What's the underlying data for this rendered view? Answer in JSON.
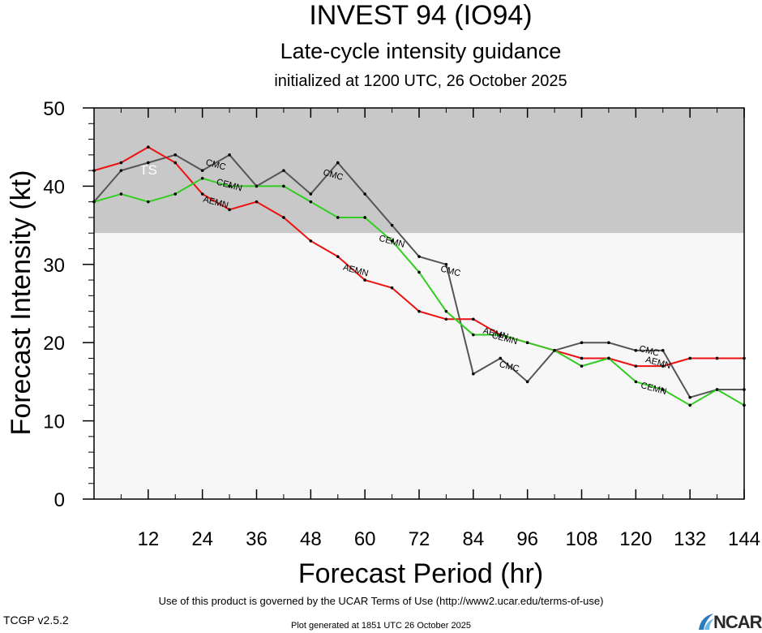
{
  "chart_data": {
    "type": "line",
    "title": "INVEST 94 (IO94)",
    "subtitle": "Late-cycle intensity guidance",
    "init_text": "initialized at 1200 UTC, 26 October 2025",
    "xlabel": "Forecast Period (hr)",
    "ylabel": "Forecast Intensity (kt)",
    "xlim": [
      0,
      144
    ],
    "ylim": [
      0,
      50
    ],
    "xticks": [
      12,
      24,
      36,
      48,
      60,
      72,
      84,
      96,
      108,
      120,
      132,
      144
    ],
    "yticks": [
      0,
      10,
      20,
      30,
      40,
      50
    ],
    "bands": [
      {
        "label": "TS",
        "from": 34,
        "to": 50,
        "color": "#c8c8c8"
      },
      {
        "label": "",
        "from": 0,
        "to": 34,
        "color": "#f7f7f7"
      }
    ],
    "series": [
      {
        "name": "CMC",
        "color": "#555555",
        "x": [
          0,
          6,
          12,
          18,
          24,
          30,
          36,
          42,
          48,
          54,
          60,
          66,
          72,
          78,
          84,
          90,
          96,
          102,
          108,
          114,
          120,
          126,
          132,
          138,
          144
        ],
        "y": [
          38,
          42,
          43,
          44,
          42,
          44,
          40,
          42,
          39,
          43,
          39,
          35,
          31,
          30,
          16,
          18,
          15,
          19,
          20,
          20,
          19,
          19,
          13,
          14,
          14
        ],
        "labels": [
          {
            "x": 27,
            "y": 42.8
          },
          {
            "x": 53,
            "y": 41.5
          },
          {
            "x": 79,
            "y": 29.2
          },
          {
            "x": 92,
            "y": 17.0
          },
          {
            "x": 123,
            "y": 19.0
          }
        ]
      },
      {
        "name": "AEMN",
        "color": "#ee1111",
        "x": [
          0,
          6,
          12,
          18,
          24,
          30,
          36,
          42,
          48,
          54,
          60,
          66,
          72,
          78,
          84,
          90,
          96,
          102,
          108,
          114,
          120,
          126,
          132,
          138,
          144
        ],
        "y": [
          42,
          43,
          45,
          43,
          39,
          37,
          38,
          36,
          33,
          31,
          28,
          27,
          24,
          23,
          23,
          21,
          20,
          19,
          18,
          18,
          17,
          17,
          18,
          18,
          18
        ],
        "labels": [
          {
            "x": 27,
            "y": 38.0
          },
          {
            "x": 58,
            "y": 29.3
          },
          {
            "x": 89,
            "y": 21.2
          },
          {
            "x": 125,
            "y": 17.5
          }
        ]
      },
      {
        "name": "CEMN",
        "color": "#33cc22",
        "x": [
          0,
          6,
          12,
          18,
          24,
          30,
          36,
          42,
          48,
          54,
          60,
          66,
          72,
          78,
          84,
          90,
          96,
          102,
          108,
          114,
          120,
          126,
          132,
          138,
          144
        ],
        "y": [
          38,
          39,
          38,
          39,
          41,
          40,
          40,
          40,
          38,
          36,
          36,
          33,
          29,
          24,
          21,
          21,
          20,
          19,
          17,
          18,
          15,
          14,
          12,
          14,
          12
        ],
        "labels": [
          {
            "x": 30,
            "y": 40.2
          },
          {
            "x": 66,
            "y": 33.0
          },
          {
            "x": 91,
            "y": 20.6
          },
          {
            "x": 124,
            "y": 14.2
          }
        ]
      }
    ]
  },
  "footer": {
    "terms": "Use of this product is governed by the UCAR Terms of Use (http://www2.ucar.edu/terms-of-use)",
    "version": "TCGP v2.5.2",
    "generated": "Plot generated at 1851 UTC   26 October 2025",
    "logo_text": "NCAR"
  }
}
